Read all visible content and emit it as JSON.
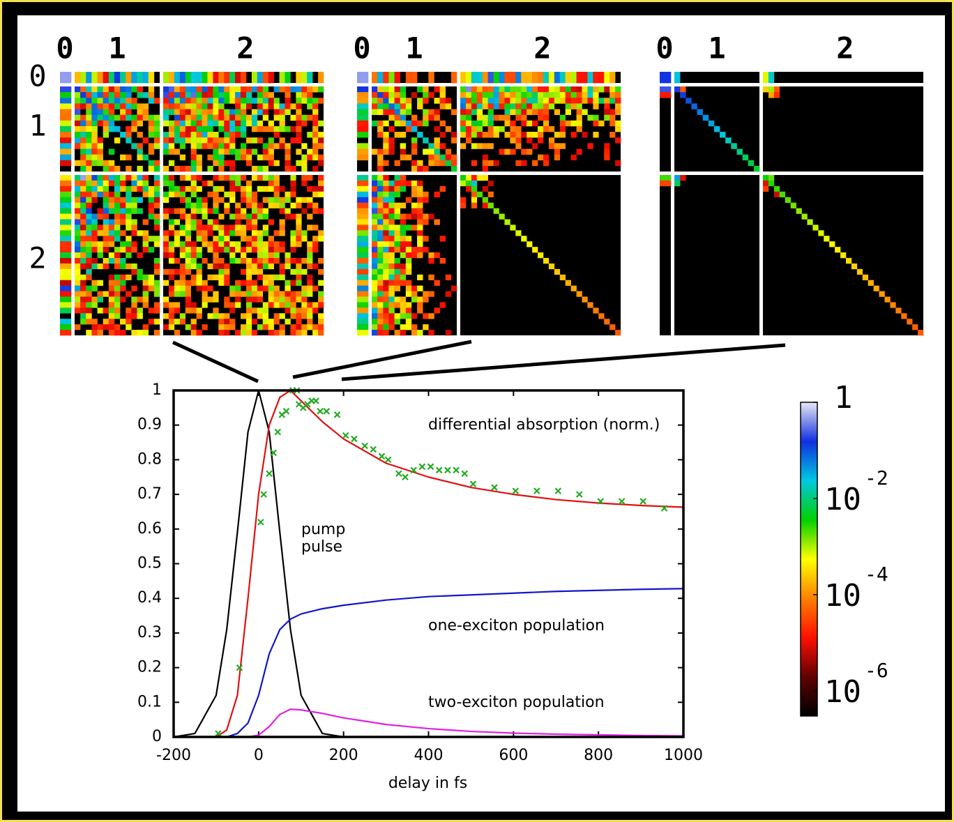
{
  "chart_data": {
    "type": "line",
    "x": [
      -200,
      -150,
      -100,
      -75,
      -50,
      -25,
      0,
      25,
      50,
      75,
      100,
      150,
      200,
      300,
      400,
      500,
      600,
      700,
      800,
      900,
      1000
    ],
    "series": [
      {
        "color": "#000000",
        "values": [
          0,
          0.01,
          0.12,
          0.31,
          0.59,
          0.88,
          1,
          0.88,
          0.59,
          0.31,
          0.12,
          0.01,
          0,
          0,
          0,
          0,
          0,
          0,
          0,
          0,
          0
        ]
      },
      {
        "color": "#e01010",
        "values": [
          0,
          0,
          0,
          0.02,
          0.12,
          0.4,
          0.7,
          0.9,
          0.98,
          1,
          0.97,
          0.91,
          0.86,
          0.79,
          0.75,
          0.72,
          0.7,
          0.685,
          0.675,
          0.668,
          0.663
        ]
      },
      {
        "color": "#1515c8",
        "values": [
          0,
          0,
          0,
          0,
          0.01,
          0.04,
          0.12,
          0.24,
          0.31,
          0.34,
          0.355,
          0.37,
          0.38,
          0.395,
          0.405,
          0.41,
          0.415,
          0.42,
          0.423,
          0.426,
          0.428
        ]
      },
      {
        "color": "#e020e0",
        "values": [
          0,
          0,
          0,
          0,
          0,
          0,
          0.005,
          0.03,
          0.065,
          0.08,
          0.078,
          0.068,
          0.055,
          0.036,
          0.024,
          0.016,
          0.011,
          0.008,
          0.006,
          0.004,
          0.003
        ]
      },
      {
        "type": "scatter",
        "color": "#22aa22",
        "x": [
          -95,
          -45,
          5,
          12,
          25,
          35,
          45,
          55,
          65,
          80,
          90,
          95,
          105,
          115,
          125,
          135,
          145,
          160,
          185,
          205,
          225,
          250,
          270,
          290,
          305,
          330,
          345,
          365,
          385,
          405,
          425,
          445,
          465,
          485,
          505,
          555,
          605,
          655,
          705,
          755,
          805,
          855,
          905,
          955
        ],
        "values": [
          0.01,
          0.2,
          0.62,
          0.7,
          0.76,
          0.82,
          0.88,
          0.93,
          0.94,
          1,
          1,
          0.96,
          0.95,
          0.96,
          0.97,
          0.97,
          0.94,
          0.94,
          0.93,
          0.87,
          0.86,
          0.84,
          0.83,
          0.81,
          0.8,
          0.76,
          0.75,
          0.77,
          0.78,
          0.78,
          0.77,
          0.77,
          0.77,
          0.76,
          0.73,
          0.72,
          0.71,
          0.71,
          0.71,
          0.7,
          0.68,
          0.68,
          0.68,
          0.66
        ]
      }
    ],
    "xlim": [
      -200,
      1000
    ],
    "xticks": [
      -200,
      0,
      200,
      400,
      600,
      800,
      1000
    ],
    "ylim": [
      0,
      1
    ],
    "yticks": [
      0,
      0.1,
      0.2,
      0.3,
      0.4,
      0.5,
      0.6,
      0.7,
      0.8,
      0.9,
      1
    ],
    "xlabel": "delay in fs",
    "annotations": [
      "differential absorption (norm.)",
      "pump",
      "pulse",
      "one-exciton population",
      "two-exciton population"
    ],
    "colorbar": {
      "scale": "log",
      "lim": [
        3e-07,
        1
      ],
      "colormap": [
        "#000000",
        "#600000",
        "#ff1000",
        "#ff8000",
        "#ffff00",
        "#00d000",
        "#00c8e0",
        "#1030e0",
        "#e8e8f4"
      ],
      "ticks": [
        1,
        {
          "value": 0.01,
          "label": "10",
          "exponent": "-2"
        },
        {
          "value": 0.0001,
          "label": "10",
          "exponent": "-4"
        },
        {
          "value": 1e-06,
          "label": "10",
          "exponent": "-6"
        }
      ]
    },
    "density_matrices": {
      "row_labels": [
        "0",
        "1",
        "2"
      ],
      "panels": [
        {
          "column_labels": [
            "0",
            "1",
            "2"
          ]
        },
        {
          "column_labels": [
            "0",
            "1",
            "2"
          ]
        },
        {
          "column_labels": [
            "0",
            "1",
            "2"
          ]
        }
      ]
    }
  }
}
